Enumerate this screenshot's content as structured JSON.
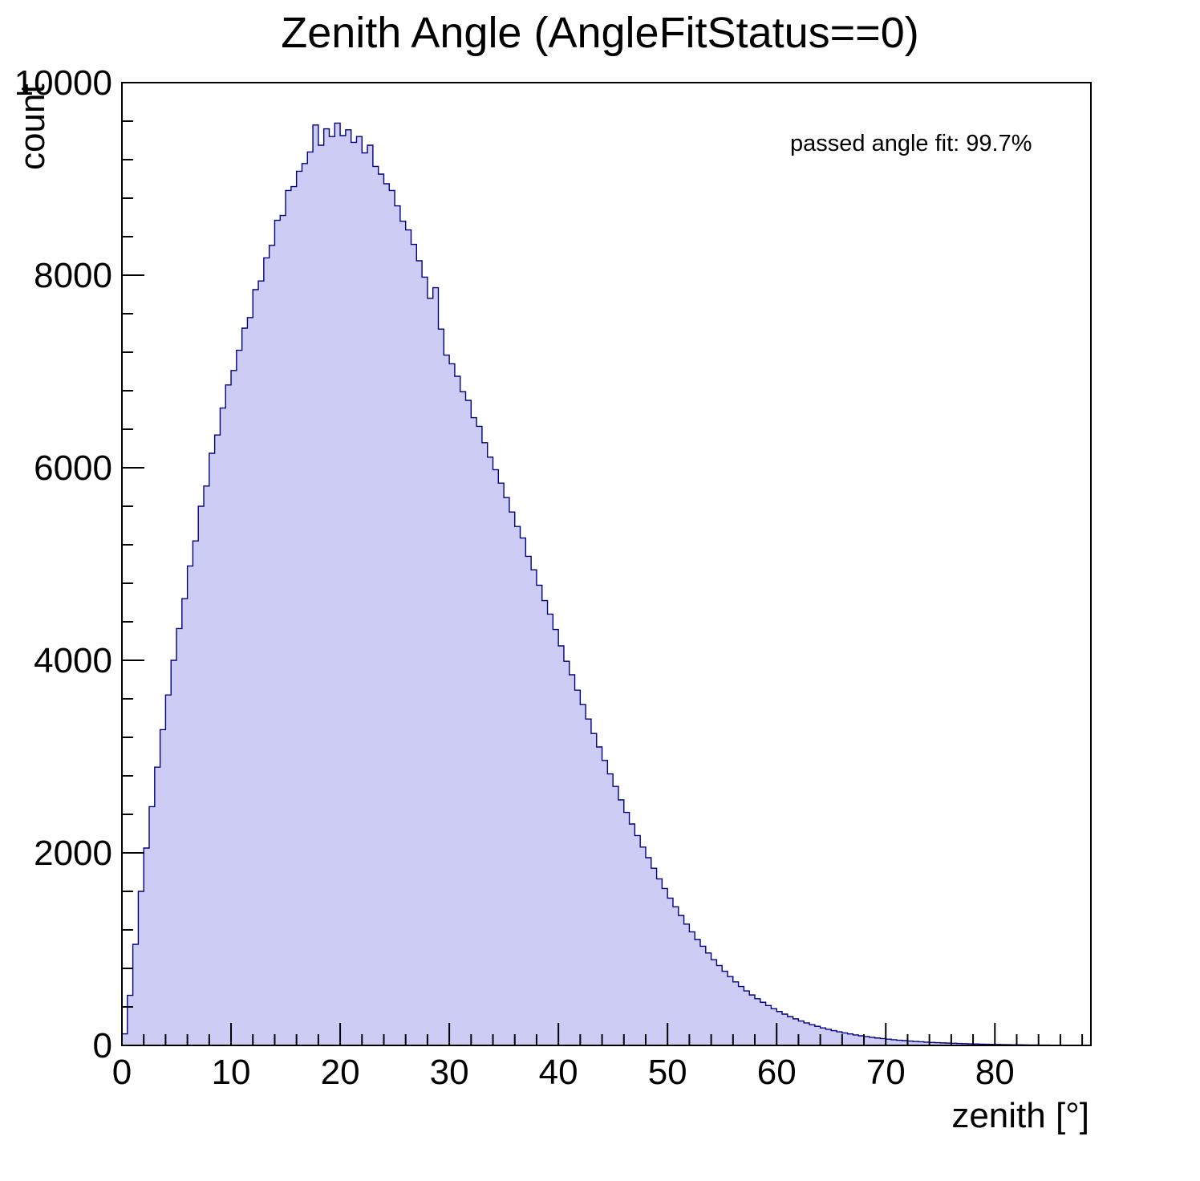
{
  "chart_data": {
    "type": "histogram",
    "title": "Zenith Angle (AngleFitStatus==0)",
    "annotation": "passed angle fit: 99.7%",
    "xlabel": "zenith [°]",
    "ylabel": "count",
    "xlim": [
      0,
      88.8
    ],
    "ylim": [
      0,
      10000
    ],
    "x_ticks": [
      0,
      10,
      20,
      30,
      40,
      50,
      60,
      70,
      80
    ],
    "y_ticks": [
      0,
      2000,
      4000,
      6000,
      8000,
      10000
    ],
    "x_minor_step": 2,
    "y_minor_step": 400,
    "bin_width": 0.5,
    "x_start": 0,
    "values": [
      120,
      520,
      1050,
      1600,
      2050,
      2480,
      2890,
      3280,
      3640,
      4000,
      4330,
      4640,
      4980,
      5240,
      5600,
      5810,
      6150,
      6340,
      6620,
      6860,
      7010,
      7220,
      7450,
      7560,
      7850,
      7940,
      8180,
      8310,
      8570,
      8620,
      8880,
      8920,
      9080,
      9160,
      9280,
      9560,
      9350,
      9520,
      9440,
      9580,
      9450,
      9510,
      9380,
      9440,
      9270,
      9350,
      9130,
      9050,
      8950,
      8880,
      8720,
      8560,
      8470,
      8320,
      8150,
      7980,
      7760,
      7870,
      7440,
      7170,
      7080,
      6950,
      6790,
      6700,
      6520,
      6430,
      6260,
      6110,
      5980,
      5840,
      5690,
      5540,
      5390,
      5270,
      5080,
      4940,
      4780,
      4620,
      4480,
      4320,
      4150,
      3990,
      3850,
      3690,
      3540,
      3390,
      3240,
      3100,
      2960,
      2820,
      2690,
      2550,
      2420,
      2300,
      2180,
      2060,
      1950,
      1840,
      1730,
      1630,
      1530,
      1440,
      1350,
      1260,
      1180,
      1100,
      1030,
      960,
      890,
      830,
      770,
      715,
      660,
      612,
      566,
      524,
      485,
      448,
      414,
      382,
      352,
      325,
      299,
      276,
      254,
      234,
      215,
      198,
      182,
      167,
      154,
      141,
      130,
      119,
      109,
      100,
      92,
      84,
      77,
      71,
      65,
      59,
      54,
      50,
      45,
      41,
      38,
      34,
      31,
      29,
      26,
      24,
      22,
      20,
      18,
      16,
      15,
      13,
      12,
      11,
      10,
      9,
      8,
      7,
      7,
      6,
      5,
      5,
      4,
      4,
      3,
      3,
      3,
      2,
      2,
      2
    ]
  },
  "colors": {
    "fill": "#ccccf5",
    "line": "#000080",
    "axis": "#000000",
    "text": "#000000"
  }
}
